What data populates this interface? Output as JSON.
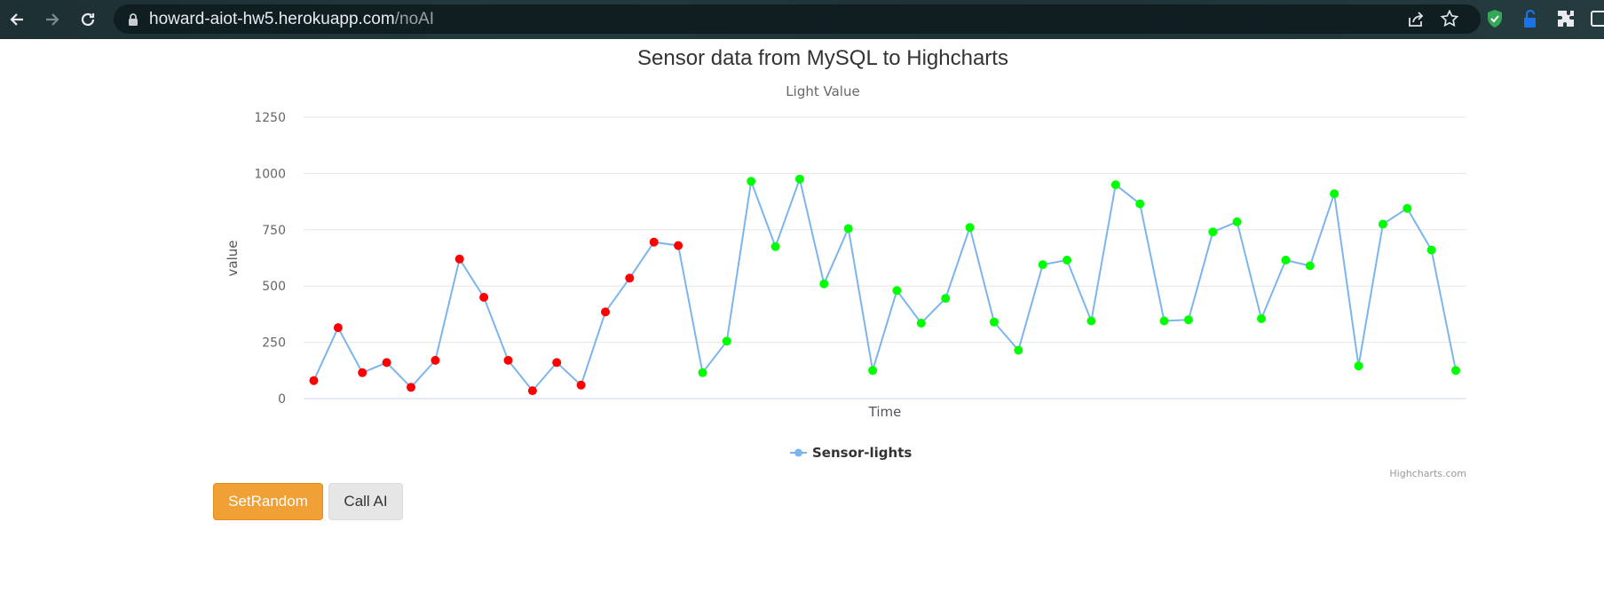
{
  "browser": {
    "url_host": "howard-aiot-hw5.herokuapp.com",
    "url_path": "/noAI"
  },
  "buttons": {
    "set_random": "SetRandom",
    "call_ai": "Call AI"
  },
  "chart_data": {
    "type": "line",
    "title": "Sensor data from MySQL to Highcharts",
    "subtitle": "Light Value",
    "xlabel": "Time",
    "ylabel": "value",
    "ylim": [
      0,
      1250
    ],
    "yticks": [
      0,
      250,
      500,
      750,
      1000,
      1250
    ],
    "grid": true,
    "legend_position": "bottom-center",
    "credits": "Highcharts.com",
    "line_color": "#7cb5ec",
    "point_colors": {
      "low": "#ff0000",
      "high": "#00ff00"
    },
    "series": [
      {
        "name": "Sensor-lights",
        "values": [
          80,
          315,
          115,
          160,
          50,
          170,
          620,
          450,
          170,
          35,
          160,
          60,
          385,
          535,
          695,
          680,
          115,
          255,
          965,
          675,
          975,
          510,
          755,
          125,
          480,
          335,
          445,
          760,
          340,
          215,
          595,
          615,
          345,
          950,
          865,
          345,
          350,
          740,
          785,
          355,
          615,
          590,
          910,
          145,
          775,
          845,
          660,
          125
        ],
        "point_color_groups": [
          "low",
          "low",
          "low",
          "low",
          "low",
          "low",
          "low",
          "low",
          "low",
          "low",
          "low",
          "low",
          "low",
          "low",
          "low",
          "low",
          "high",
          "high",
          "high",
          "high",
          "high",
          "high",
          "high",
          "high",
          "high",
          "high",
          "high",
          "high",
          "high",
          "high",
          "high",
          "high",
          "high",
          "high",
          "high",
          "high",
          "high",
          "high",
          "high",
          "high",
          "high",
          "high",
          "high",
          "high",
          "high",
          "high",
          "high",
          "high"
        ]
      }
    ]
  }
}
